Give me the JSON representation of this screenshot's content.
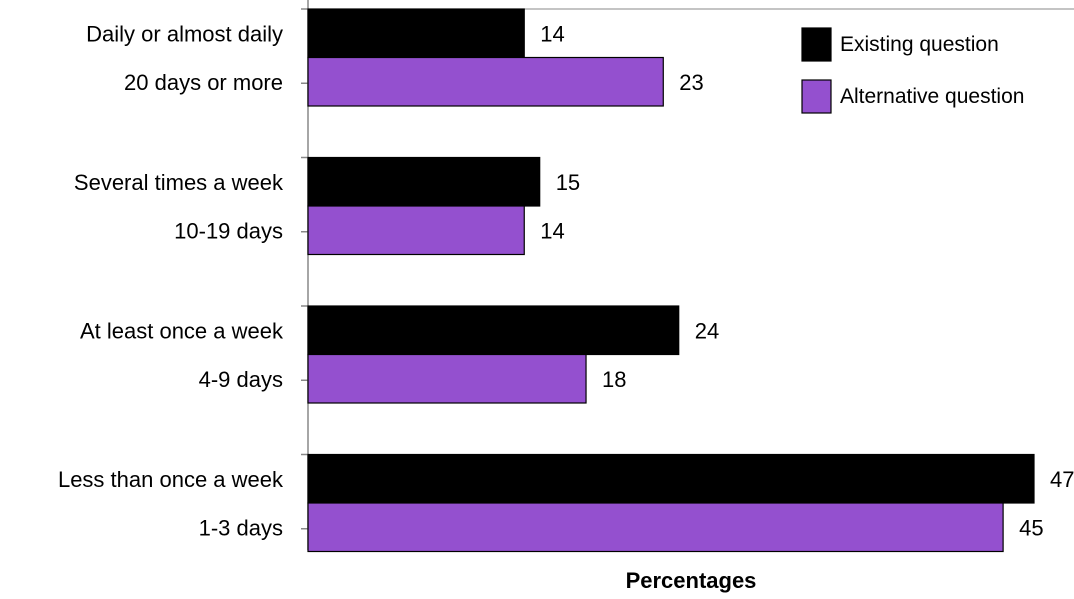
{
  "chart_data": {
    "type": "bar",
    "orientation": "horizontal",
    "xlabel": "Percentages",
    "xlim": [
      0,
      47
    ],
    "grid": false,
    "legend_position": "top-right",
    "groups": [
      {
        "labels": [
          "Daily or almost daily",
          "20 days or more"
        ],
        "values": [
          14,
          23
        ]
      },
      {
        "labels": [
          "Several times a week",
          "10-19 days"
        ],
        "values": [
          15,
          14
        ]
      },
      {
        "labels": [
          "At least once a week",
          "4-9 days"
        ],
        "values": [
          24,
          18
        ]
      },
      {
        "labels": [
          "Less than once a week",
          "1-3 days"
        ],
        "values": [
          47,
          45
        ]
      }
    ],
    "series": [
      {
        "name": "Existing question",
        "values": [
          14,
          15,
          24,
          47
        ],
        "color": "#000000"
      },
      {
        "name": "Alternative question",
        "values": [
          23,
          14,
          18,
          45
        ],
        "color": "#9450CF"
      }
    ]
  }
}
